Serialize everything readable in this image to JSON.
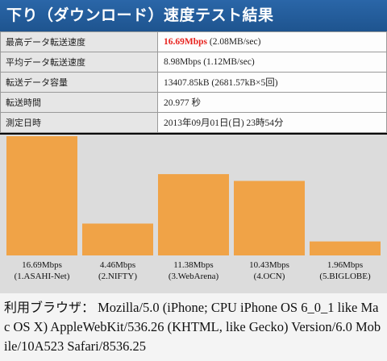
{
  "header": {
    "title": "下り（ダウンロード）速度テスト結果"
  },
  "stats": [
    {
      "key": "最高データ転送速度",
      "value_strong": "16.69Mbps",
      "value_rest": " (2.08MB/sec)"
    },
    {
      "key": "平均データ転送速度",
      "value_strong": "",
      "value_rest": "8.98Mbps (1.12MB/sec)"
    },
    {
      "key": "転送データ容量",
      "value_strong": "",
      "value_rest": "13407.85kB (2681.57kB×5回)"
    },
    {
      "key": "転送時間",
      "value_strong": "",
      "value_rest": "20.977 秒"
    },
    {
      "key": "測定日時",
      "value_strong": "",
      "value_rest": "2013年09月01日(日) 23時54分"
    }
  ],
  "colors": {
    "bar": "#f0a347",
    "header": "#2a66a8",
    "highlight": "#e8231e"
  },
  "chart_data": {
    "type": "bar",
    "categories": [
      "(1.ASAHI-Net)",
      "(2.NIFTY)",
      "(3.WebArena)",
      "(4.OCN)",
      "(5.BIGLOBE)"
    ],
    "value_labels": [
      "16.69Mbps",
      "4.46Mbps",
      "11.38Mbps",
      "10.43Mbps",
      "1.96Mbps"
    ],
    "values": [
      16.69,
      4.46,
      11.38,
      10.43,
      1.96
    ],
    "ylim": [
      0,
      16.69
    ],
    "title": "",
    "xlabel": "",
    "ylabel": "",
    "grid": false
  },
  "user_agent": {
    "label": "利用ブラウザ：",
    "value": " Mozilla/5.0 (iPhone; CPU iPhone OS 6_0_1 like Mac OS X) AppleWebKit/536.26 (KHTML, like Gecko) Version/6.0 Mobile/10A523 Safari/8536.25"
  }
}
